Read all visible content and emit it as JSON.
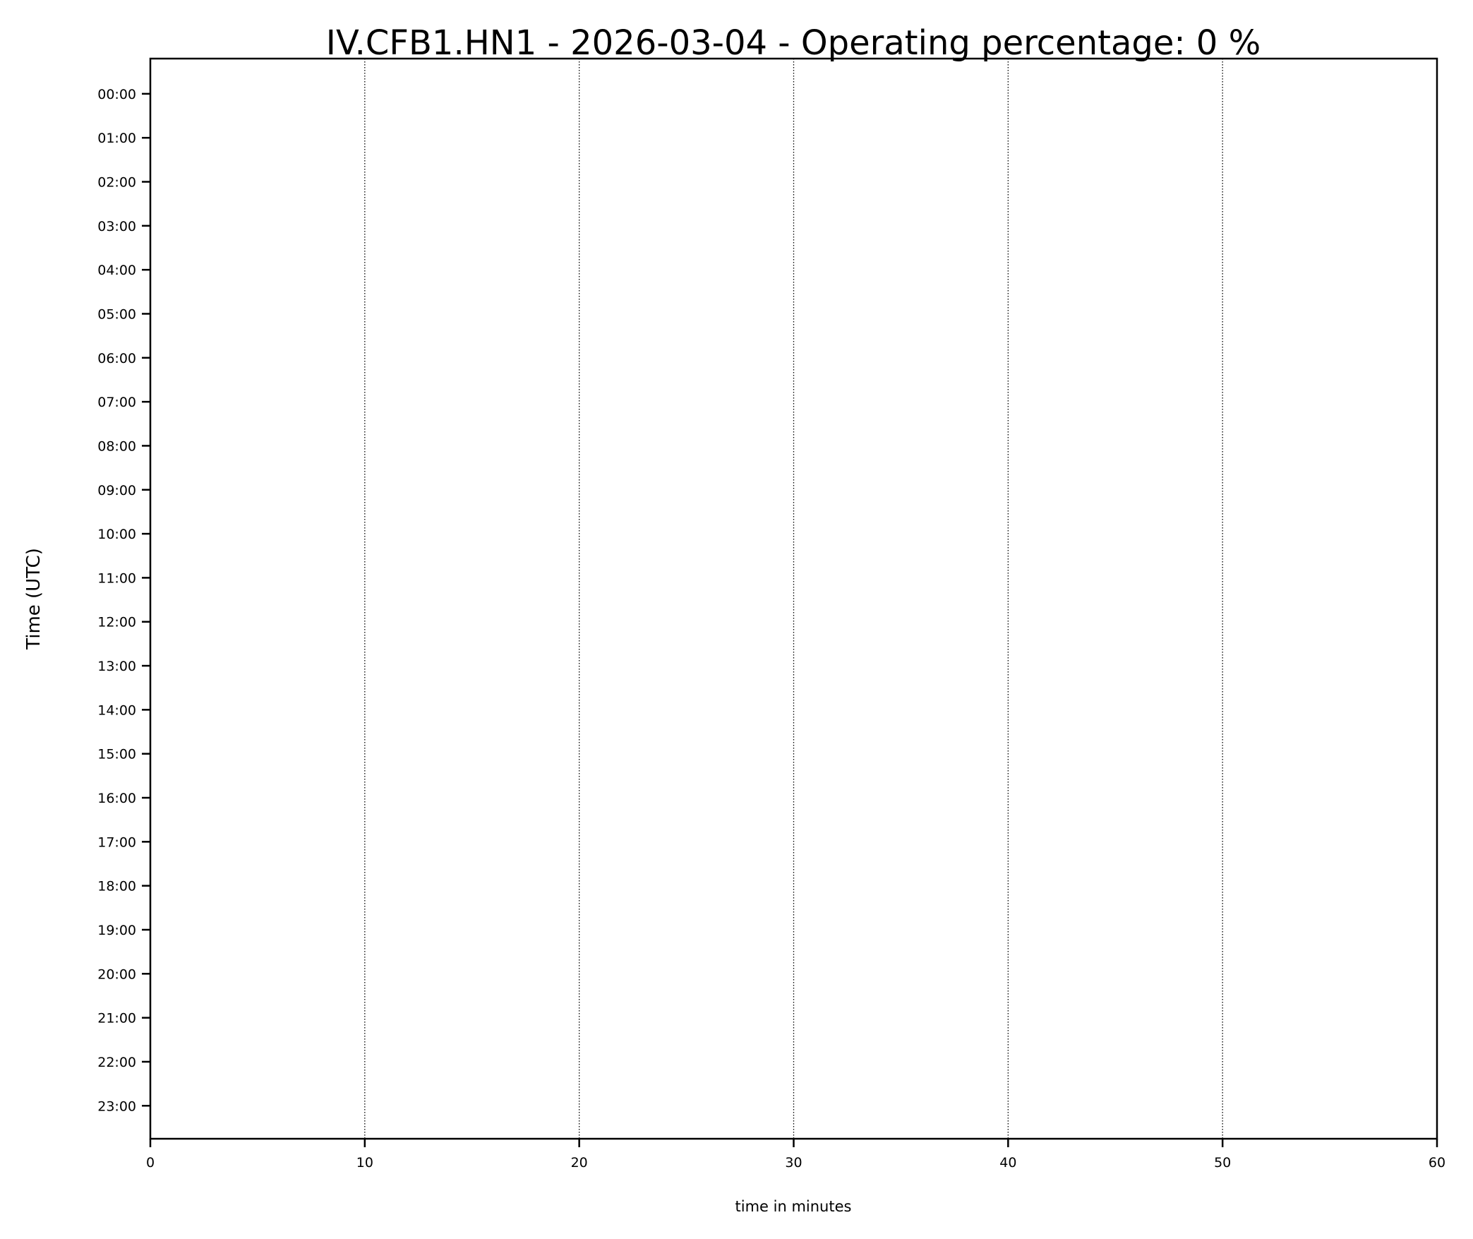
{
  "chart_data": {
    "type": "heatmap",
    "title": "IV.CFB1.HN1 - 2026-03-04 - Operating percentage: 0 %",
    "xlabel": "time in minutes",
    "ylabel": "Time (UTC)",
    "xlim": [
      0,
      60
    ],
    "ylim": [
      -0.8,
      23.75
    ],
    "y_inverted": true,
    "x_ticks": [
      0,
      10,
      20,
      30,
      40,
      50,
      60
    ],
    "x_tick_labels": [
      "0",
      "10",
      "20",
      "30",
      "40",
      "50",
      "60"
    ],
    "y_tick_labels": [
      "00:00",
      "01:00",
      "02:00",
      "03:00",
      "04:00",
      "05:00",
      "06:00",
      "07:00",
      "08:00",
      "09:00",
      "10:00",
      "11:00",
      "12:00",
      "13:00",
      "14:00",
      "15:00",
      "16:00",
      "17:00",
      "18:00",
      "19:00",
      "20:00",
      "21:00",
      "22:00",
      "23:00"
    ],
    "grid": {
      "x": true,
      "y": false,
      "style": "dotted"
    },
    "values": [],
    "operating_percentage": 0
  }
}
